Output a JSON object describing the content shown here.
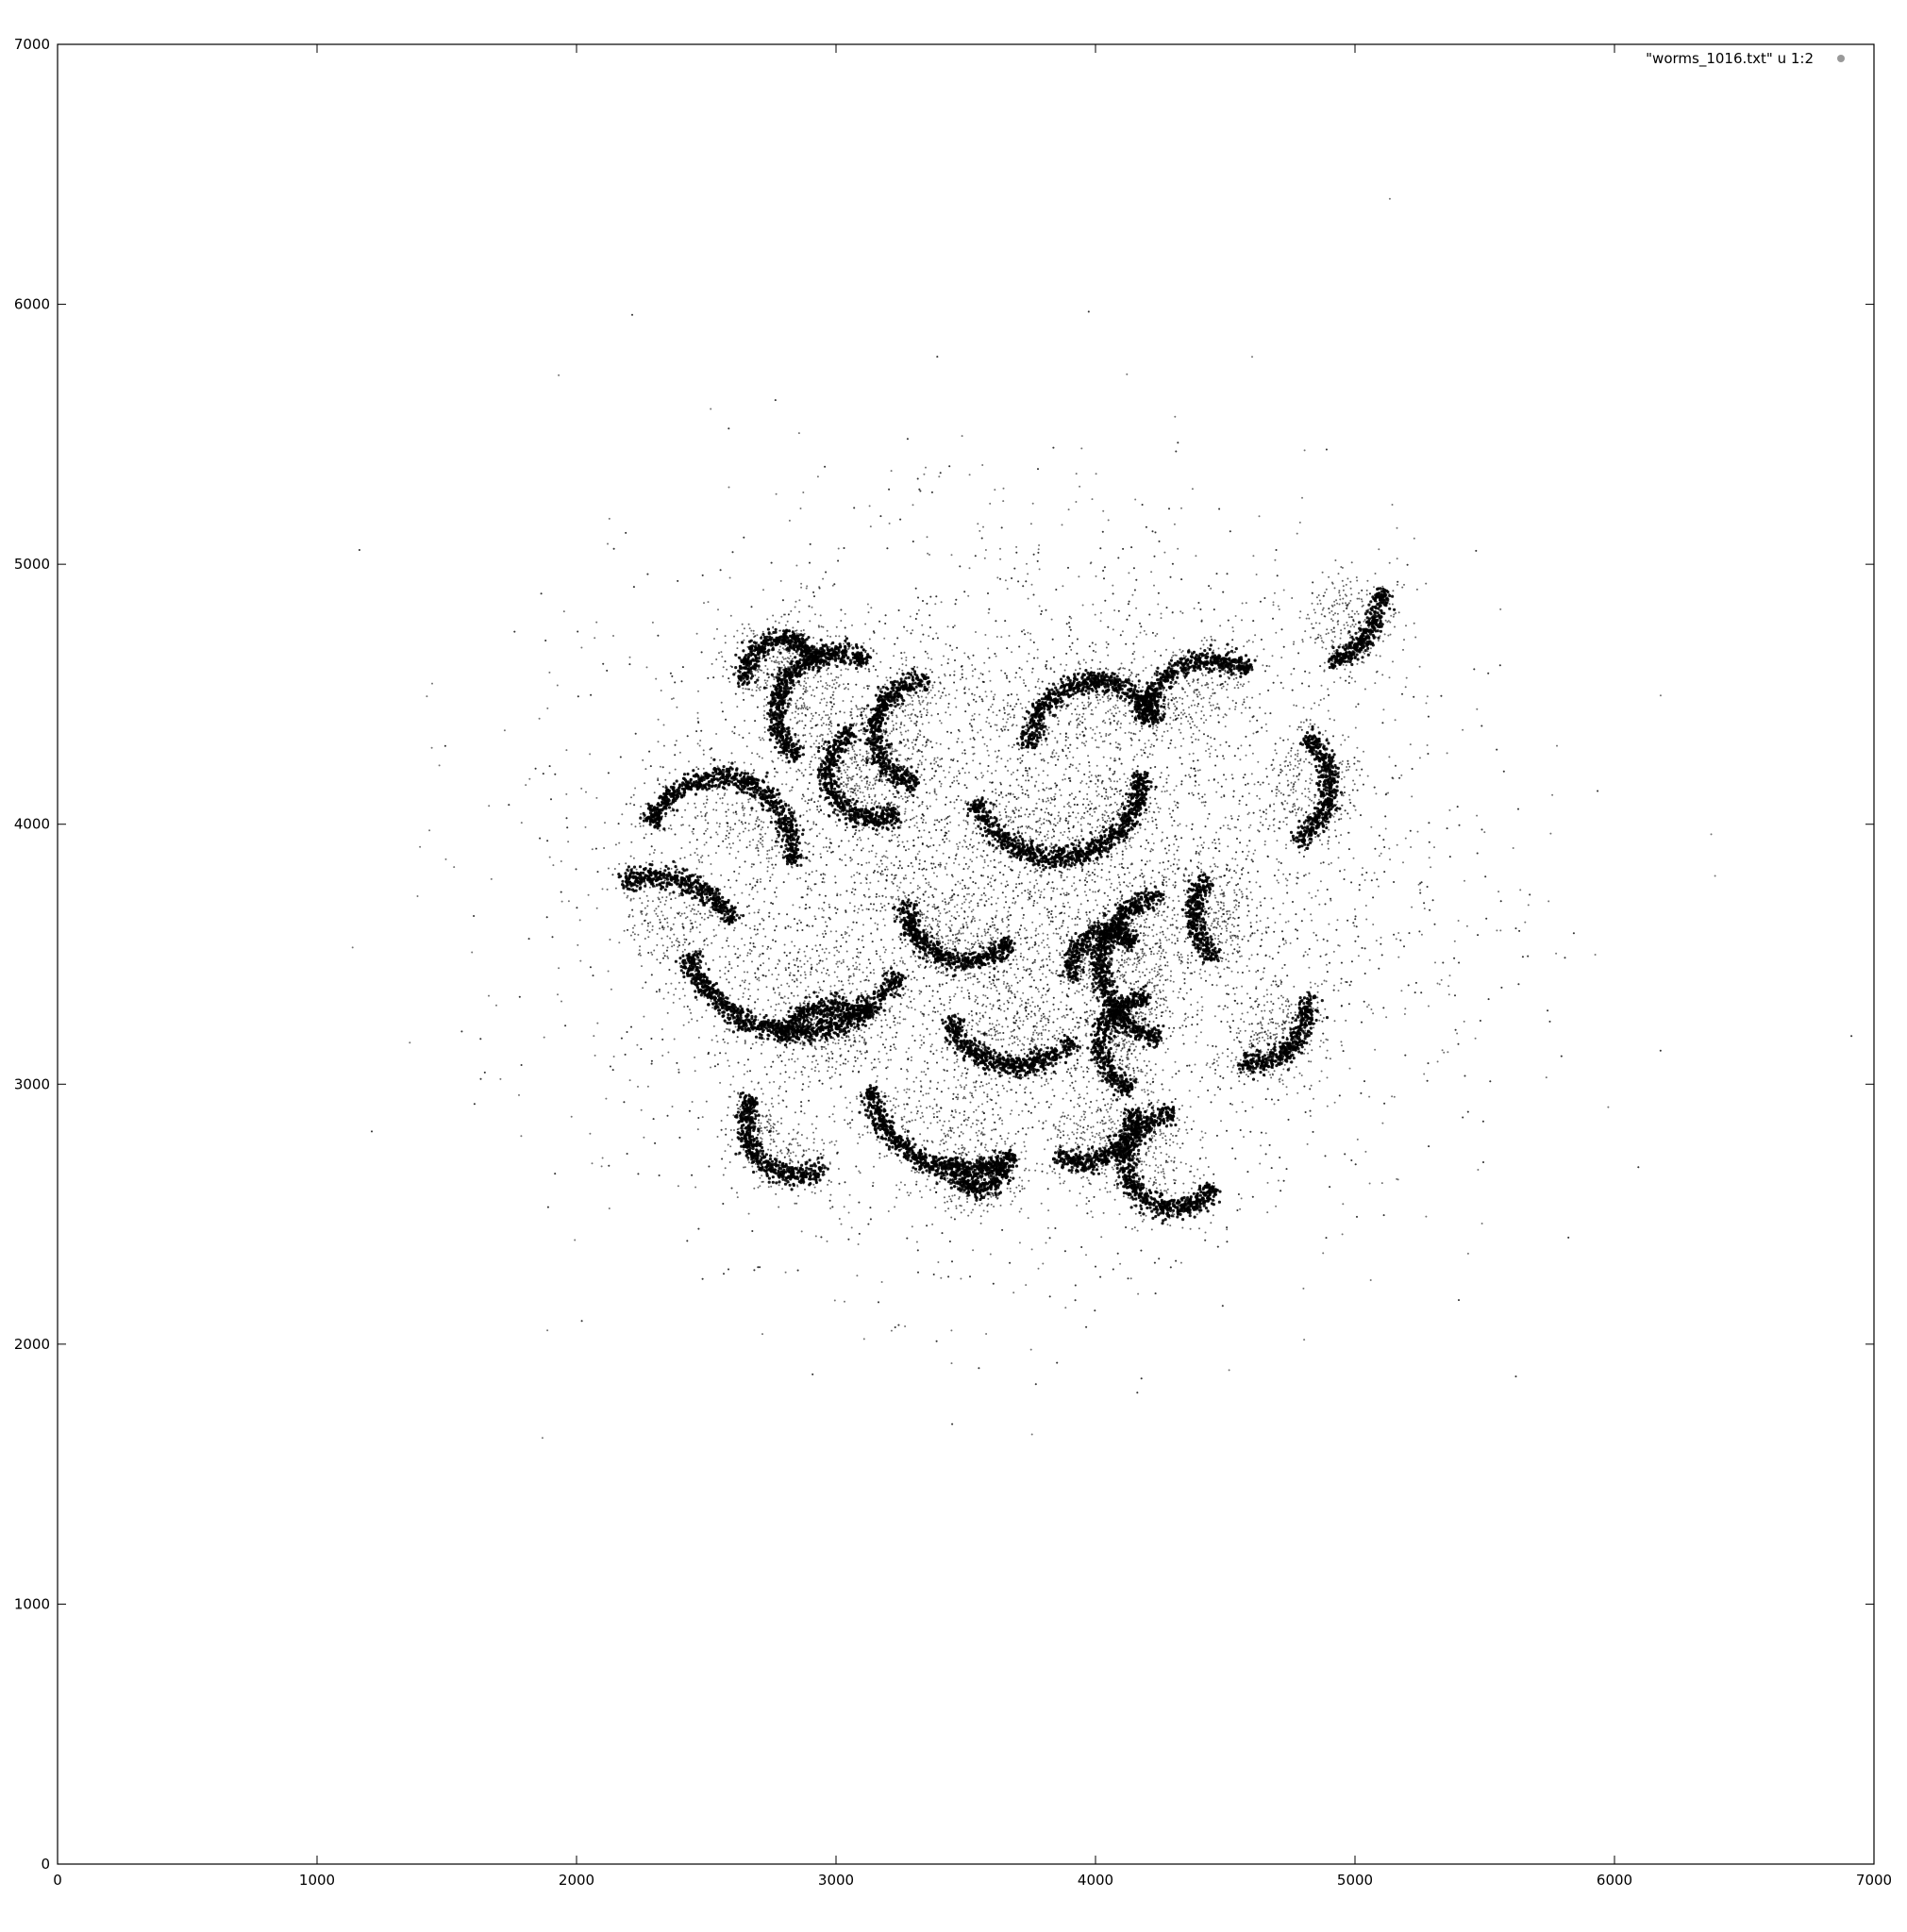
{
  "chart_data": {
    "type": "scatter",
    "title": "",
    "xlabel": "",
    "ylabel": "",
    "xlim": [
      0,
      7000
    ],
    "ylim": [
      0,
      7000
    ],
    "xticks": [
      0,
      1000,
      2000,
      3000,
      4000,
      5000,
      6000,
      7000
    ],
    "yticks": [
      0,
      1000,
      2000,
      3000,
      4000,
      5000,
      6000,
      7000
    ],
    "xtick_labels": [
      "0",
      "1000",
      "2000",
      "3000",
      "4000",
      "5000",
      "6000",
      "7000"
    ],
    "ytick_labels": [
      "0",
      "1000",
      "2000",
      "3000",
      "4000",
      "5000",
      "6000",
      "7000"
    ],
    "grid": false,
    "legend": {
      "position": "top-right",
      "entries": [
        "\"worms_1016.txt\" u 1:2"
      ]
    },
    "series": [
      {
        "name": "\"worms_1016.txt\" u 1:2",
        "marker_color": "#000000",
        "legend_marker_color": "#999999",
        "description_points": "approximate sampled points of the worm-shaped clusters plus scattered halo",
        "worm_arcs": [
          {
            "cx": 2800,
            "cy": 4560,
            "r": 150,
            "a0": 20,
            "a1": 190
          },
          {
            "cx": 3000,
            "cy": 4430,
            "r": 230,
            "a0": 60,
            "a1": 230
          },
          {
            "cx": 3350,
            "cy": 4350,
            "r": 200,
            "a0": 90,
            "a1": 260
          },
          {
            "cx": 3150,
            "cy": 4200,
            "r": 180,
            "a0": 120,
            "a1": 300
          },
          {
            "cx": 2550,
            "cy": 3900,
            "r": 280,
            "a0": -10,
            "a1": 160
          },
          {
            "cx": 3500,
            "cy": 3700,
            "r": 230,
            "a0": 180,
            "a1": 320
          },
          {
            "cx": 3850,
            "cy": 4200,
            "r": 330,
            "a0": 200,
            "a1": 360
          },
          {
            "cx": 4000,
            "cy": 4300,
            "r": 250,
            "a0": 20,
            "a1": 180
          },
          {
            "cx": 4450,
            "cy": 4350,
            "r": 280,
            "a0": 60,
            "a1": 170
          },
          {
            "cx": 4650,
            "cy": 4150,
            "r": 250,
            "a0": -60,
            "a1": 50
          },
          {
            "cx": 4800,
            "cy": 4900,
            "r": 300,
            "a0": -70,
            "a1": 0
          },
          {
            "cx": 4600,
            "cy": 3300,
            "r": 220,
            "a0": -100,
            "a1": 10
          },
          {
            "cx": 4300,
            "cy": 3450,
            "r": 280,
            "a0": 100,
            "a1": 260
          },
          {
            "cx": 4050,
            "cy": 3450,
            "r": 140,
            "a0": 40,
            "a1": 200
          },
          {
            "cx": 3700,
            "cy": 3350,
            "r": 280,
            "a0": 200,
            "a1": 320
          },
          {
            "cx": 2850,
            "cy": 3650,
            "r": 450,
            "a0": 200,
            "a1": 330
          },
          {
            "cx": 2300,
            "cy": 3450,
            "r": 350,
            "a0": 30,
            "a1": 110
          },
          {
            "cx": 3000,
            "cy": 3050,
            "r": 250,
            "a0": 60,
            "a1": 150
          },
          {
            "cx": 2850,
            "cy": 2850,
            "r": 200,
            "a0": 150,
            "a1": 300
          },
          {
            "cx": 3500,
            "cy": 3050,
            "r": 380,
            "a0": 190,
            "a1": 300
          },
          {
            "cx": 3550,
            "cy": 2700,
            "r": 100,
            "a0": 180,
            "a1": 360
          },
          {
            "cx": 3950,
            "cy": 2900,
            "r": 200,
            "a0": 240,
            "a1": 360
          },
          {
            "cx": 4300,
            "cy": 2700,
            "r": 180,
            "a0": 90,
            "a1": 330
          },
          {
            "cx": 4200,
            "cy": 3150,
            "r": 180,
            "a0": 90,
            "a1": 250
          },
          {
            "cx": 4600,
            "cy": 3650,
            "r": 220,
            "a0": 140,
            "a1": 230
          }
        ],
        "halo_center": [
          3700,
          3750
        ],
        "halo_spread": [
          750,
          620
        ]
      }
    ]
  }
}
